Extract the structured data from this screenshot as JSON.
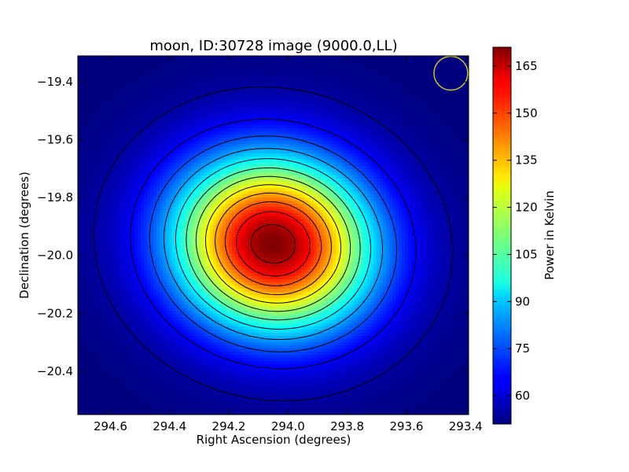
{
  "chart_data": {
    "type": "heatmap",
    "title": "moon, ID:30728 image (9000.0,LL)",
    "xlabel": "Right Ascension (degrees)",
    "ylabel": "Declination (degrees)",
    "xlim": [
      294.71,
      293.39
    ],
    "ylim": [
      -20.55,
      -19.31
    ],
    "xticks": [
      294.6,
      294.4,
      294.2,
      294.0,
      293.8,
      293.6,
      293.4
    ],
    "xtick_labels": [
      "294.6",
      "294.4",
      "294.2",
      "294.0",
      "293.8",
      "293.6",
      "293.4"
    ],
    "yticks": [
      -19.4,
      -19.6,
      -19.8,
      -20.0,
      -20.2,
      -20.4
    ],
    "ytick_labels": [
      "−19.4",
      "−19.6",
      "−19.8",
      "−20.0",
      "−20.2",
      "−20.4"
    ],
    "colormap": "jet",
    "colorbar": {
      "label": "Power in Kelvin",
      "range": [
        51,
        171
      ],
      "ticks": [
        60,
        75,
        90,
        105,
        120,
        135,
        150,
        165
      ],
      "tick_labels": [
        "60",
        "75",
        "90",
        "105",
        "120",
        "135",
        "150",
        "165"
      ]
    },
    "source": {
      "ra_center": 294.05,
      "dec_center": -19.96,
      "peak_kelvin": 171,
      "background_kelvin": 51
    },
    "contour_levels": [
      55,
      65,
      75,
      85,
      95,
      105,
      115,
      125,
      135,
      145,
      155,
      165
    ],
    "beam_marker": {
      "ra": 293.45,
      "dec": -19.37,
      "radius_deg": 0.057,
      "color": "#d4c12a"
    },
    "grid": false
  }
}
